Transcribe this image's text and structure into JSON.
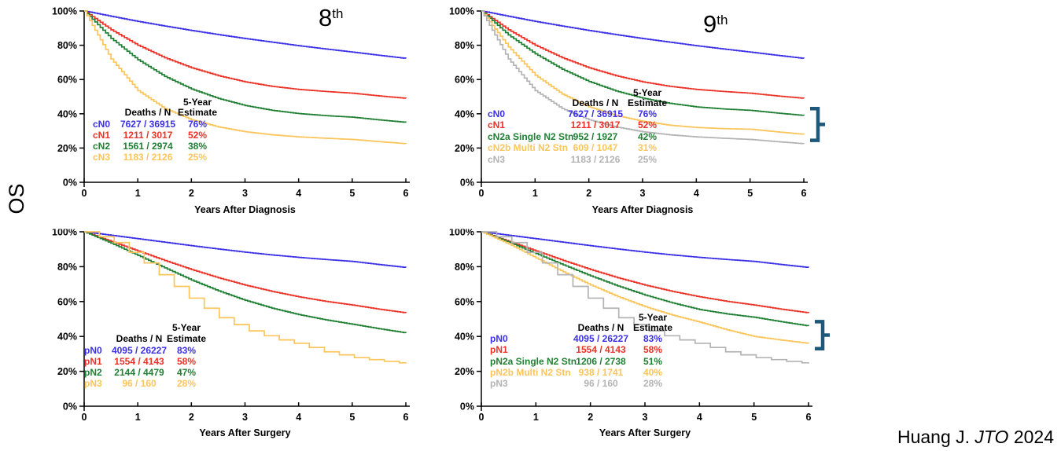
{
  "page": {
    "os_label": "OS",
    "citation_author": "Huang J.",
    "citation_journal": "JTO",
    "citation_year": "2024"
  },
  "colors": {
    "blue": "#3B30E8",
    "red": "#EC3226",
    "green": "#1F7F33",
    "yellow": "#FBC55C",
    "gray": "#B3B3B3",
    "brace": "#1C587A",
    "axis": "#000000"
  },
  "chart_data": [
    {
      "id": "clinical-n-8th-edition",
      "type": "line",
      "title_base": "8",
      "title_sup": "th",
      "xlabel": "Years After Diagnosis",
      "x_ticks": [
        "0",
        "1",
        "2",
        "3",
        "4",
        "5",
        "6"
      ],
      "y_ticks": [
        "0%",
        "20%",
        "40%",
        "60%",
        "80%",
        "100%"
      ],
      "xlim": [
        0,
        6
      ],
      "ylim": [
        0,
        100
      ],
      "y100_clipped": false,
      "legend": {
        "col_deaths": "Deaths / N",
        "col_est_line1": "5-Year",
        "col_est_line2": "Estimate",
        "rows": [
          {
            "label": "cN0",
            "deaths_n": "7627 / 36915",
            "estimate": "76%",
            "color": "blue"
          },
          {
            "label": "cN1",
            "deaths_n": "1211 / 3017",
            "estimate": "52%",
            "color": "red"
          },
          {
            "label": "cN2",
            "deaths_n": "1561 / 2974",
            "estimate": "38%",
            "color": "green"
          },
          {
            "label": "cN3",
            "deaths_n": "1183 / 2126",
            "estimate": "25%",
            "color": "yellow"
          }
        ]
      },
      "series": [
        {
          "name": "cN0",
          "color": "blue",
          "step": 0.05,
          "x": [
            0,
            0.5,
            1,
            1.5,
            2,
            2.5,
            3,
            3.5,
            4,
            4.5,
            5,
            5.5,
            6
          ],
          "y": [
            100,
            96.9,
            93.9,
            91.2,
            88.6,
            86.2,
            83.9,
            81.8,
            79.7,
            77.8,
            76,
            74.1,
            72.3
          ]
        },
        {
          "name": "cN1",
          "color": "red",
          "step": 0.05,
          "x": [
            0,
            0.5,
            1,
            1.5,
            2,
            2.5,
            3,
            3.5,
            4,
            4.5,
            5,
            5.5,
            6
          ],
          "y": [
            100,
            89,
            80,
            72.7,
            66.8,
            62.2,
            58.6,
            56,
            54.2,
            53,
            52,
            50.4,
            49
          ]
        },
        {
          "name": "cN2",
          "color": "green",
          "step": 0.05,
          "x": [
            0,
            0.5,
            1,
            1.5,
            2,
            2.5,
            3,
            3.5,
            4,
            4.5,
            5,
            5.5,
            6
          ],
          "y": [
            100,
            84,
            71.5,
            61.8,
            54.4,
            48.9,
            44.8,
            42,
            40.1,
            38.9,
            38,
            36.4,
            35
          ]
        },
        {
          "name": "cN3",
          "color": "yellow",
          "step": 0.05,
          "x": [
            0,
            0.5,
            1,
            1.5,
            2,
            2.5,
            3,
            3.5,
            4,
            4.5,
            5,
            5.5,
            6
          ],
          "y": [
            100,
            72,
            53.5,
            43,
            36.5,
            32.3,
            29.5,
            27.7,
            26.5,
            25.7,
            25,
            23.7,
            22.5
          ]
        }
      ],
      "brace": null
    },
    {
      "id": "clinical-n-9th-edition",
      "type": "line",
      "title_base": "9",
      "title_sup": "th",
      "xlabel": "Years After Diagnosis",
      "x_ticks": [
        "0",
        "1",
        "2",
        "3",
        "4",
        "5",
        "6"
      ],
      "y_ticks": [
        "0%",
        "20%",
        "40%",
        "60%",
        "80%",
        "100%"
      ],
      "xlim": [
        0,
        6
      ],
      "ylim": [
        0,
        100
      ],
      "y100_clipped": false,
      "legend": {
        "col_deaths": "Deaths / N",
        "col_est_line1": "5-Year",
        "col_est_line2": "Estimate",
        "rows": [
          {
            "label": "cN0",
            "deaths_n": "7627 / 36915",
            "estimate": "76%",
            "color": "blue"
          },
          {
            "label": "cN1",
            "deaths_n": "1211 / 3017",
            "estimate": "52%",
            "color": "red"
          },
          {
            "label": "cN2a Single N2 Stn",
            "deaths_n": "952 / 1927",
            "estimate": "42%",
            "color": "green"
          },
          {
            "label": "cN2b Multi N2 Stn",
            "deaths_n": "609 / 1047",
            "estimate": "31%",
            "color": "yellow"
          },
          {
            "label": "cN3",
            "deaths_n": "1183 / 2126",
            "estimate": "25%",
            "color": "gray"
          }
        ]
      },
      "series": [
        {
          "name": "cN0",
          "color": "blue",
          "step": 0.05,
          "x": [
            0,
            0.5,
            1,
            1.5,
            2,
            2.5,
            3,
            3.5,
            4,
            4.5,
            5,
            5.5,
            6
          ],
          "y": [
            100,
            96.9,
            93.9,
            91.2,
            88.6,
            86.2,
            83.9,
            81.8,
            79.7,
            77.8,
            76,
            74.1,
            72.3
          ]
        },
        {
          "name": "cN1",
          "color": "red",
          "step": 0.05,
          "x": [
            0,
            0.5,
            1,
            1.5,
            2,
            2.5,
            3,
            3.5,
            4,
            4.5,
            5,
            5.5,
            6
          ],
          "y": [
            100,
            89,
            80,
            72.7,
            66.8,
            62.2,
            58.6,
            56,
            54.2,
            53,
            52,
            50.4,
            49
          ]
        },
        {
          "name": "cN2a Single N2 Stn",
          "color": "green",
          "step": 0.05,
          "x": [
            0,
            0.5,
            1,
            1.5,
            2,
            2.5,
            3,
            3.5,
            4,
            4.5,
            5,
            5.5,
            6
          ],
          "y": [
            100,
            86,
            75,
            66,
            58.8,
            53.3,
            49.1,
            46.1,
            44,
            42.8,
            42,
            40.4,
            39
          ]
        },
        {
          "name": "cN2b Multi N2 Stn",
          "color": "yellow",
          "step": 0.05,
          "x": [
            0,
            0.5,
            1,
            1.5,
            2,
            2.5,
            3,
            3.5,
            4,
            4.5,
            5,
            5.5,
            6
          ],
          "y": [
            100,
            79,
            62.5,
            51.5,
            44,
            39,
            35.6,
            33.3,
            32,
            31.3,
            31,
            29.4,
            28
          ]
        },
        {
          "name": "cN3",
          "color": "gray",
          "step": 0.05,
          "x": [
            0,
            0.5,
            1,
            1.5,
            2,
            2.5,
            3,
            3.5,
            4,
            4.5,
            5,
            5.5,
            6
          ],
          "y": [
            100,
            72,
            53.5,
            43,
            36.5,
            32.3,
            29.5,
            27.7,
            26.5,
            25.7,
            25,
            23.7,
            22.5
          ]
        }
      ],
      "brace": {
        "from_pct": 43,
        "to_pct": 24.5
      }
    },
    {
      "id": "pathological-n-8th-edition",
      "type": "line",
      "title_base": "",
      "title_sup": "",
      "xlabel": "Years After Surgery",
      "x_ticks": [
        "0",
        "1",
        "2",
        "3",
        "4",
        "5",
        "6"
      ],
      "y_ticks": [
        "0%",
        "20%",
        "40%",
        "60%",
        "80%",
        "100%"
      ],
      "xlim": [
        0,
        6
      ],
      "ylim": [
        0,
        100
      ],
      "y100_clipped": true,
      "legend": {
        "col_deaths": "Deaths / N",
        "col_est_line1": "5-Year",
        "col_est_line2": "Estimate",
        "rows": [
          {
            "label": "pN0",
            "deaths_n": "4095 / 26227",
            "estimate": "83%",
            "color": "blue"
          },
          {
            "label": "pN1",
            "deaths_n": "1554 / 4143",
            "estimate": "58%",
            "color": "red"
          },
          {
            "label": "pN2",
            "deaths_n": "2144 / 4479",
            "estimate": "47%",
            "color": "green"
          },
          {
            "label": "pN3",
            "deaths_n": "96 / 160",
            "estimate": "28%",
            "color": "yellow"
          }
        ]
      },
      "series": [
        {
          "name": "pN0",
          "color": "blue",
          "step": 0.05,
          "x": [
            0,
            0.5,
            1,
            1.5,
            2,
            2.5,
            3,
            3.5,
            4,
            4.5,
            5,
            5.5,
            6
          ],
          "y": [
            100,
            98,
            96,
            94,
            92,
            90.1,
            88.3,
            86.7,
            85.3,
            84.1,
            83,
            81.2,
            79.5
          ]
        },
        {
          "name": "pN1",
          "color": "red",
          "step": 0.05,
          "x": [
            0,
            0.5,
            1,
            1.5,
            2,
            2.5,
            3,
            3.5,
            4,
            4.5,
            5,
            5.5,
            6
          ],
          "y": [
            100,
            94.5,
            89,
            83.5,
            78.3,
            73.6,
            69.4,
            65.8,
            62.7,
            60.1,
            58,
            55.6,
            53.5
          ]
        },
        {
          "name": "pN2",
          "color": "green",
          "step": 0.05,
          "x": [
            0,
            0.5,
            1,
            1.5,
            2,
            2.5,
            3,
            3.5,
            4,
            4.5,
            5,
            5.5,
            6
          ],
          "y": [
            100,
            93.5,
            86.5,
            79.3,
            72.3,
            66.1,
            60.7,
            56.2,
            52.5,
            49.5,
            47,
            44.4,
            42
          ]
        },
        {
          "name": "pN3",
          "color": "yellow",
          "step": 0.28,
          "x": [
            0,
            0.5,
            1,
            1.5,
            2,
            2.5,
            3,
            3.5,
            4,
            4.5,
            5,
            5.5,
            6
          ],
          "y": [
            100,
            95,
            85,
            73,
            61,
            51,
            44,
            39,
            35.5,
            31,
            28,
            26,
            24.5
          ]
        }
      ],
      "brace": null
    },
    {
      "id": "pathological-n-9th-edition",
      "type": "line",
      "title_base": "",
      "title_sup": "",
      "xlabel": "Years After Surgery",
      "x_ticks": [
        "0",
        "1",
        "2",
        "3",
        "4",
        "5",
        "6"
      ],
      "y_ticks": [
        "0%",
        "20%",
        "40%",
        "60%",
        "80%",
        "100%"
      ],
      "xlim": [
        0,
        6
      ],
      "ylim": [
        0,
        100
      ],
      "y100_clipped": true,
      "legend": {
        "col_deaths": "Deaths / N",
        "col_est_line1": "5-Year",
        "col_est_line2": "Estimate",
        "rows": [
          {
            "label": "pN0",
            "deaths_n": "4095 / 26227",
            "estimate": "83%",
            "color": "blue"
          },
          {
            "label": "pN1",
            "deaths_n": "1554 / 4143",
            "estimate": "58%",
            "color": "red"
          },
          {
            "label": "pN2a Single N2 Stn",
            "deaths_n": "1206 / 2738",
            "estimate": "51%",
            "color": "green"
          },
          {
            "label": "pN2b Multi N2 Stn",
            "deaths_n": "938 / 1741",
            "estimate": "40%",
            "color": "yellow"
          },
          {
            "label": "pN3",
            "deaths_n": "96 / 160",
            "estimate": "28%",
            "color": "gray"
          }
        ]
      },
      "series": [
        {
          "name": "pN0",
          "color": "blue",
          "step": 0.05,
          "x": [
            0,
            0.5,
            1,
            1.5,
            2,
            2.5,
            3,
            3.5,
            4,
            4.5,
            5,
            5.5,
            6
          ],
          "y": [
            100,
            98,
            96,
            94,
            92,
            90.1,
            88.3,
            86.7,
            85.3,
            84.1,
            83,
            81.2,
            79.5
          ]
        },
        {
          "name": "pN1",
          "color": "red",
          "step": 0.05,
          "x": [
            0,
            0.5,
            1,
            1.5,
            2,
            2.5,
            3,
            3.5,
            4,
            4.5,
            5,
            5.5,
            6
          ],
          "y": [
            100,
            94.5,
            89,
            83.5,
            78.3,
            73.6,
            69.4,
            65.8,
            62.7,
            60.1,
            58,
            55.6,
            53.5
          ]
        },
        {
          "name": "pN2a Single N2 Stn",
          "color": "green",
          "step": 0.05,
          "x": [
            0,
            0.5,
            1,
            1.5,
            2,
            2.5,
            3,
            3.5,
            4,
            4.5,
            5,
            5.5,
            6
          ],
          "y": [
            100,
            94,
            87.5,
            81,
            74.7,
            68.9,
            63.7,
            59.2,
            55.4,
            52.9,
            51,
            48.4,
            46
          ]
        },
        {
          "name": "pN2b Multi N2 Stn",
          "color": "yellow",
          "step": 0.05,
          "x": [
            0,
            0.5,
            1,
            1.5,
            2,
            2.5,
            3,
            3.5,
            4,
            4.5,
            5,
            5.5,
            6
          ],
          "y": [
            100,
            93,
            85,
            77,
            69.5,
            62.8,
            57,
            52.2,
            48.2,
            43.8,
            40,
            37.9,
            36
          ]
        },
        {
          "name": "pN3",
          "color": "gray",
          "step": 0.28,
          "x": [
            0,
            0.5,
            1,
            1.5,
            2,
            2.5,
            3,
            3.5,
            4,
            4.5,
            5,
            5.5,
            6
          ],
          "y": [
            100,
            95,
            85,
            73,
            61,
            51,
            44,
            39,
            35.5,
            31,
            28,
            26,
            24.5
          ]
        }
      ],
      "brace": {
        "from_pct": 48.5,
        "to_pct": 33
      }
    }
  ]
}
